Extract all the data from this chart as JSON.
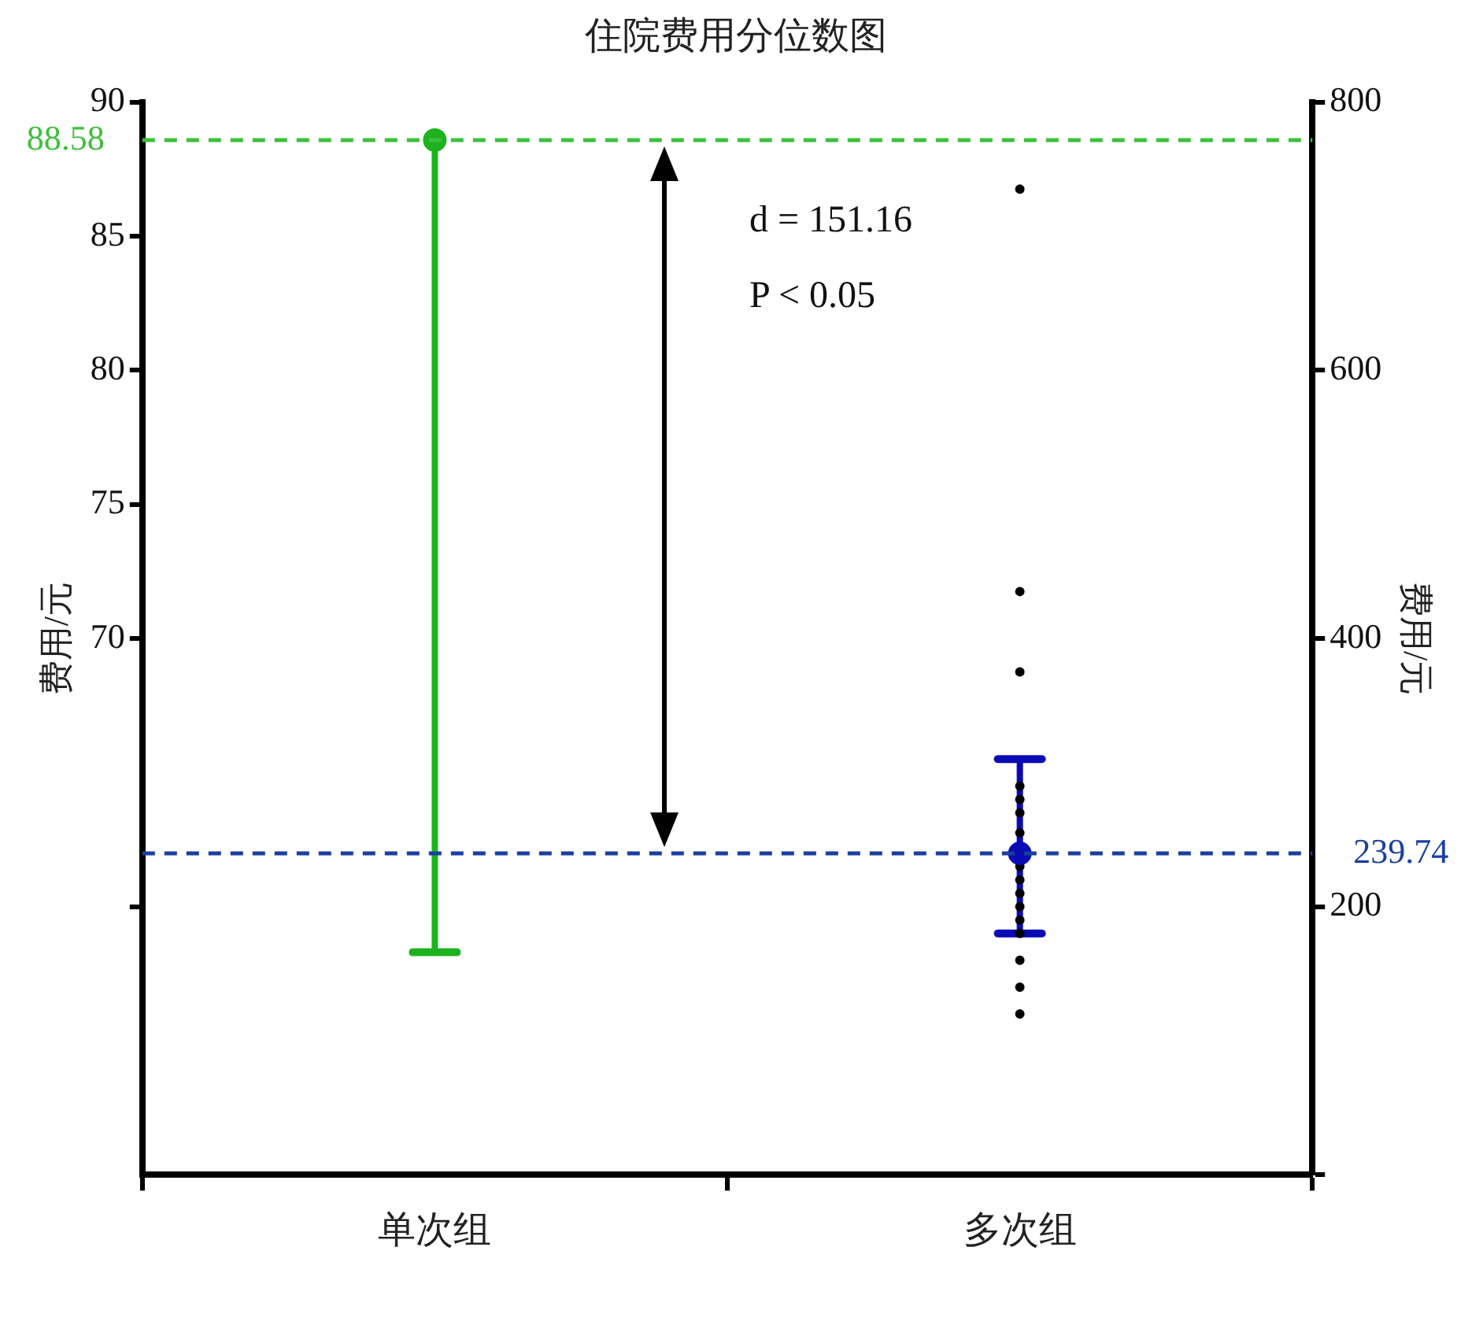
{
  "chart_data": {
    "type": "scatter",
    "title": "住院费用分位数图",
    "ylabel": "费用/元",
    "y2label": "费用/元",
    "categories": [
      "单次组",
      "多次组"
    ],
    "ylim": [
      50,
      90
    ],
    "yticks": [
      90,
      85,
      80,
      75,
      70,
      {
        "value": 60,
        "label": null
      }
    ],
    "y2lim": [
      0,
      800
    ],
    "y2ticks": [
      800,
      600,
      400,
      200,
      {
        "value": 0,
        "label": null
      }
    ],
    "series": [
      {
        "type": "scatter",
        "x": [
          "单次组"
        ],
        "values": [
          88.58
        ],
        "errors": [
          [
            58.3,
            88.58
          ]
        ],
        "color": "#1fb21f",
        "marker": "circle"
      },
      {
        "type": "scatter",
        "axis": "y2",
        "x": [
          "多次组"
        ],
        "values": [
          239.74
        ],
        "errors": [
          [
            180,
            310
          ]
        ],
        "color": "#0a0ab4",
        "marker": "circle"
      },
      {
        "type": "scatter",
        "axis": "y2",
        "x": [
          "多次组",
          "多次组",
          "多次组",
          "多次组",
          "多次组",
          "多次组",
          "多次组",
          "多次组",
          "多次组",
          "多次组",
          "多次组",
          "多次组",
          "多次组",
          "多次组",
          "多次组",
          "多次组"
        ],
        "values": [
          735,
          435,
          375,
          290,
          280,
          270,
          255,
          230,
          220,
          210,
          200,
          190,
          180,
          160,
          140,
          120
        ],
        "color": "#000000",
        "marker": "circle"
      }
    ],
    "ref_lines": [
      {
        "axis": "y",
        "value": 88.58,
        "label": "88.58",
        "color": "#3cc03c",
        "line_style": "dashed"
      },
      {
        "axis": "y2",
        "value": 239.74,
        "label": "239.74",
        "color": "#1a3f9e",
        "line_style": "dashed"
      }
    ],
    "annotations": [
      "d = 151.16",
      "P < 0.05"
    ],
    "grid": false,
    "legend": false
  }
}
